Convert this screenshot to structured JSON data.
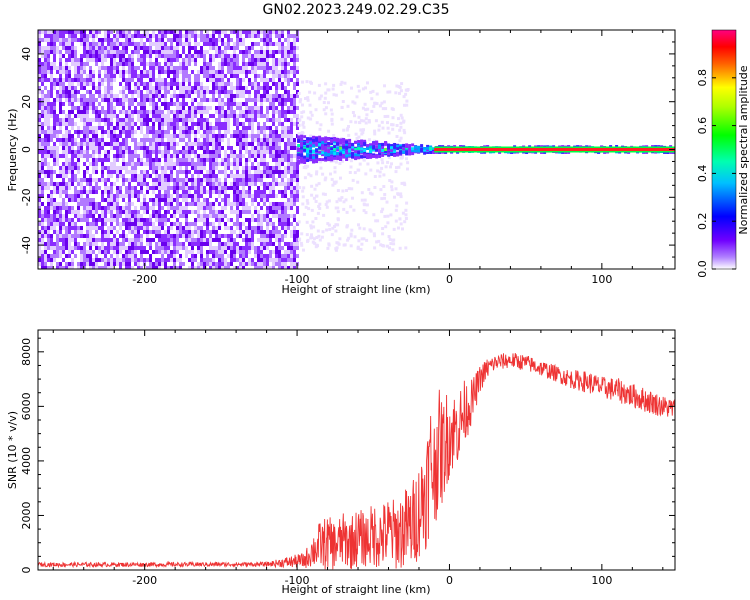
{
  "title": "GN02.2023.249.02.29.C35",
  "chart_data": [
    {
      "type": "heatmap",
      "xlabel": "Height of straight line (km)",
      "ylabel": "Frequency (Hz)",
      "xlim": [
        -270,
        148
      ],
      "ylim": [
        -50,
        50
      ],
      "xticks": [
        -200,
        -100,
        0,
        100
      ],
      "yticks": [
        -40,
        -20,
        0,
        20,
        40
      ],
      "noise_region_x": [
        -270,
        -100
      ],
      "signal_start_x": -100,
      "signal_carrier_frequency": 0,
      "colorbar": {
        "label": "Normalized spectral amplitude",
        "range": [
          0,
          1
        ],
        "ticks": [
          "0.0",
          "0.2",
          "0.4",
          "0.6",
          "0.8"
        ],
        "colors": [
          "#ffffff",
          "#8000ff",
          "#0000ff",
          "#00ffff",
          "#00ff00",
          "#ffff00",
          "#ff0000",
          "#ff0080"
        ]
      }
    },
    {
      "type": "line",
      "xlabel": "Height of straight line (km)",
      "ylabel": "SNR (10 * v/v)",
      "xlim": [
        -270,
        148
      ],
      "ylim": [
        0,
        8800
      ],
      "xticks": [
        -200,
        -100,
        0,
        100
      ],
      "yticks": [
        0,
        2000,
        4000,
        6000,
        8000
      ],
      "color": "#ee3333",
      "series": [
        {
          "x": [
            -270,
            -200,
            -120,
            -95,
            -90,
            -85,
            -80,
            -75,
            -70,
            -65,
            -60,
            -55,
            -50,
            -45,
            -40,
            -35,
            -30,
            -25,
            -20,
            -15,
            -12,
            -10,
            -8,
            -5,
            -2,
            0,
            5,
            10,
            15,
            20,
            25,
            30,
            40,
            50,
            60,
            70,
            80,
            90,
            100,
            110,
            120,
            130,
            140,
            148
          ],
          "y": [
            200,
            200,
            210,
            350,
            700,
            900,
            1000,
            900,
            1100,
            1000,
            1200,
            1100,
            1300,
            1200,
            1400,
            1300,
            1500,
            1600,
            2200,
            3000,
            4000,
            3500,
            4500,
            4300,
            4800,
            5000,
            5200,
            5800,
            6200,
            7000,
            7400,
            7600,
            7700,
            7600,
            7400,
            7200,
            7000,
            6900,
            6700,
            6600,
            6400,
            6200,
            6000,
            5900
          ],
          "band_halfwidth": [
            80,
            80,
            80,
            300,
            600,
            900,
            1000,
            900,
            1000,
            1000,
            1100,
            1000,
            1200,
            1200,
            1300,
            1300,
            1500,
            1600,
            1800,
            2200,
            2400,
            2200,
            2400,
            2000,
            1800,
            1600,
            1400,
            1200,
            800,
            500,
            400,
            300,
            300,
            300,
            300,
            300,
            350,
            400,
            400,
            450,
            450,
            450,
            400,
            400
          ]
        }
      ]
    }
  ]
}
